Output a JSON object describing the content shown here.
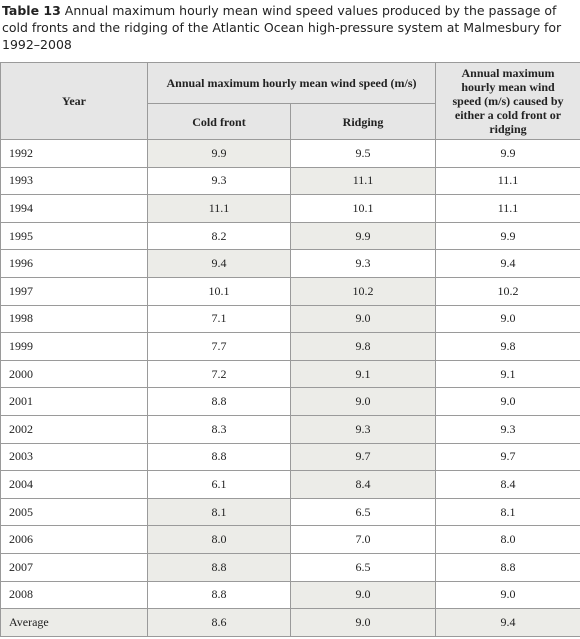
{
  "caption": {
    "label": "Table 13",
    "text": "Annual maximum hourly mean wind speed values produced by the passage of cold fronts and the ridging of the Atlantic Ocean high-pressure system at Malmesbury for 1992–2008"
  },
  "table": {
    "header": {
      "year": "Year",
      "group": "Annual maximum hourly mean wind speed (m/s)",
      "cold": "Cold front",
      "ridging": "Ridging",
      "either": "Annual maximum hourly mean wind speed (m/s) caused by either a cold front or ridging"
    },
    "rows": [
      {
        "year": "1992",
        "values": [
          "9.9",
          "9.5",
          "9.9"
        ]
      },
      {
        "year": "1993",
        "values": [
          "9.3",
          "11.1",
          "11.1"
        ]
      },
      {
        "year": "1994",
        "values": [
          "11.1",
          "10.1",
          "11.1"
        ]
      },
      {
        "year": "1995",
        "values": [
          "8.2",
          "9.9",
          "9.9"
        ]
      },
      {
        "year": "1996",
        "values": [
          "9.4",
          "9.3",
          "9.4"
        ]
      },
      {
        "year": "1997",
        "values": [
          "10.1",
          "10.2",
          "10.2"
        ]
      },
      {
        "year": "1998",
        "values": [
          "7.1",
          "9.0",
          "9.0"
        ]
      },
      {
        "year": "1999",
        "values": [
          "7.7",
          "9.8",
          "9.8"
        ]
      },
      {
        "year": "2000",
        "values": [
          "7.2",
          "9.1",
          "9.1"
        ]
      },
      {
        "year": "2001",
        "values": [
          "8.8",
          "9.0",
          "9.0"
        ]
      },
      {
        "year": "2002",
        "values": [
          "8.3",
          "9.3",
          "9.3"
        ]
      },
      {
        "year": "2003",
        "values": [
          "8.8",
          "9.7",
          "9.7"
        ]
      },
      {
        "year": "2004",
        "values": [
          "6.1",
          "8.4",
          "8.4"
        ]
      },
      {
        "year": "2005",
        "values": [
          "8.1",
          "6.5",
          "8.1"
        ]
      },
      {
        "year": "2006",
        "values": [
          "8.0",
          "7.0",
          "8.0"
        ]
      },
      {
        "year": "2007",
        "values": [
          "8.8",
          "6.5",
          "8.8"
        ]
      },
      {
        "year": "2008",
        "values": [
          "8.8",
          "9.0",
          "9.0"
        ]
      }
    ],
    "average": {
      "year": "Average",
      "values": [
        "8.6",
        "9.0",
        "9.4"
      ]
    }
  }
}
